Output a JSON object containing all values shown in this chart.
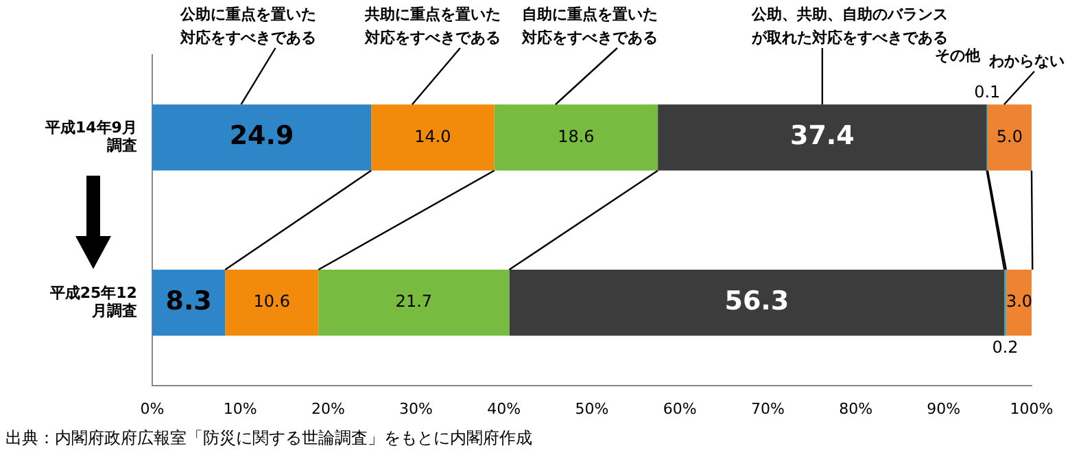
{
  "chart_data": {
    "type": "bar",
    "orientation": "horizontal",
    "stacked": true,
    "categories": [
      "平成14年9月調査",
      "平成25年12月調査"
    ],
    "series": [
      {
        "name": "公助に重点を置いた対応をすべきである",
        "color": "#2e86c8",
        "values": [
          24.9,
          8.3
        ],
        "value_labels": [
          "24.9",
          "8.3"
        ]
      },
      {
        "name": "共助に重点を置いた対応をすべきである",
        "color": "#f28a0c",
        "values": [
          14.0,
          10.6
        ],
        "value_labels": [
          "14.0",
          "10.6"
        ]
      },
      {
        "name": "自助に重点を置いた対応をすべきである",
        "color": "#77bb41",
        "values": [
          18.6,
          21.7
        ],
        "value_labels": [
          "18.6",
          "21.7"
        ]
      },
      {
        "name": "公助、共助、自助のバランスが取れた対応をすべきである",
        "color": "#3c3c3c",
        "values": [
          37.4,
          56.3
        ],
        "value_labels": [
          "37.4",
          "56.3"
        ]
      },
      {
        "name": "その他",
        "color": "#2aa7c4",
        "values": [
          0.1,
          0.2
        ],
        "value_labels": [
          "0.1",
          "0.2"
        ]
      },
      {
        "name": "わからない",
        "color": "#ee8432",
        "values": [
          5.0,
          3.0
        ],
        "value_labels": [
          "5.0",
          "3.0"
        ]
      }
    ],
    "xlim": [
      0,
      100
    ],
    "xticks": [
      {
        "value": 0,
        "label": "0%"
      },
      {
        "value": 10,
        "label": "10%"
      },
      {
        "value": 20,
        "label": "20%"
      },
      {
        "value": 30,
        "label": "30%"
      },
      {
        "value": 40,
        "label": "40%"
      },
      {
        "value": 50,
        "label": "50%"
      },
      {
        "value": 60,
        "label": "60%"
      },
      {
        "value": 70,
        "label": "70%"
      },
      {
        "value": 80,
        "label": "80%"
      },
      {
        "value": 90,
        "label": "90%"
      },
      {
        "value": 100,
        "label": "100%"
      }
    ],
    "grid": false,
    "legend": false,
    "annotations": [
      "出典：内閣府政府広報室「防災に関する世論調査」をもとに内閣府作成"
    ]
  }
}
